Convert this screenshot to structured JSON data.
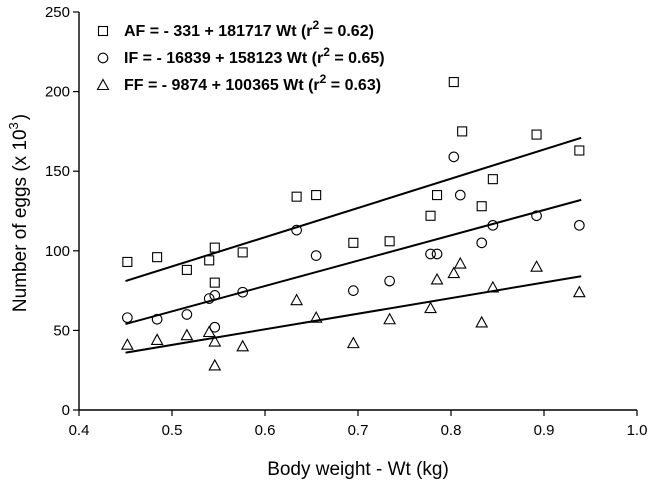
{
  "chart_data": {
    "type": "scatter",
    "xlabel": "Body weight - Wt (kg)",
    "ylabel_main": "Number of eggs (x 10",
    "ylabel_sup": "3",
    "ylabel_close": ")",
    "xlim": [
      0.4,
      1.0
    ],
    "ylim": [
      0,
      250
    ],
    "xticks": [
      0.4,
      0.5,
      0.6,
      0.7,
      0.8,
      0.9,
      1.0
    ],
    "xtick_labels": [
      "0.4",
      "0.5",
      "0.6",
      "0.7",
      "0.8",
      "0.9",
      "1.0"
    ],
    "yticks": [
      0,
      50,
      100,
      150,
      200,
      250
    ],
    "ytick_labels": [
      "0",
      "50",
      "100",
      "150",
      "200",
      "250"
    ],
    "grid": false,
    "legend_position": "top-left",
    "series": [
      {
        "name": "AF",
        "marker": "square",
        "legend_main": "AF = - 331 + 181717 Wt (r",
        "legend_sup": "2",
        "legend_close": " = 0.62)",
        "fit": {
          "x": [
            0.45,
            0.94
          ],
          "y": [
            81,
            171
          ]
        },
        "points": [
          [
            0.452,
            93
          ],
          [
            0.484,
            96
          ],
          [
            0.516,
            88
          ],
          [
            0.54,
            94
          ],
          [
            0.546,
            102
          ],
          [
            0.546,
            80
          ],
          [
            0.576,
            99
          ],
          [
            0.634,
            134
          ],
          [
            0.655,
            135
          ],
          [
            0.695,
            105
          ],
          [
            0.734,
            106
          ],
          [
            0.778,
            122
          ],
          [
            0.785,
            135
          ],
          [
            0.803,
            206
          ],
          [
            0.812,
            175
          ],
          [
            0.833,
            128
          ],
          [
            0.845,
            145
          ],
          [
            0.892,
            173
          ],
          [
            0.938,
            163
          ]
        ]
      },
      {
        "name": "IF",
        "marker": "circle",
        "legend_main": "IF = - 16839 + 158123 Wt (r",
        "legend_sup": "2",
        "legend_close": " = 0.65)",
        "fit": {
          "x": [
            0.45,
            0.94
          ],
          "y": [
            54,
            132
          ]
        },
        "points": [
          [
            0.452,
            58
          ],
          [
            0.484,
            57
          ],
          [
            0.516,
            60
          ],
          [
            0.54,
            70
          ],
          [
            0.546,
            72
          ],
          [
            0.546,
            52
          ],
          [
            0.576,
            74
          ],
          [
            0.634,
            113
          ],
          [
            0.655,
            97
          ],
          [
            0.695,
            75
          ],
          [
            0.734,
            81
          ],
          [
            0.778,
            98
          ],
          [
            0.785,
            98
          ],
          [
            0.803,
            159
          ],
          [
            0.81,
            135
          ],
          [
            0.833,
            105
          ],
          [
            0.845,
            116
          ],
          [
            0.892,
            122
          ],
          [
            0.938,
            116
          ]
        ]
      },
      {
        "name": "FF",
        "marker": "triangle",
        "legend_main": "FF = - 9874 + 100365 Wt (r",
        "legend_sup": "2",
        "legend_close": " = 0.63)",
        "fit": {
          "x": [
            0.45,
            0.94
          ],
          "y": [
            36,
            84
          ]
        },
        "points": [
          [
            0.452,
            41
          ],
          [
            0.484,
            44
          ],
          [
            0.516,
            47
          ],
          [
            0.54,
            49
          ],
          [
            0.546,
            43
          ],
          [
            0.546,
            28
          ],
          [
            0.576,
            40
          ],
          [
            0.634,
            69
          ],
          [
            0.655,
            58
          ],
          [
            0.695,
            42
          ],
          [
            0.734,
            57
          ],
          [
            0.778,
            64
          ],
          [
            0.785,
            82
          ],
          [
            0.803,
            86
          ],
          [
            0.81,
            92
          ],
          [
            0.833,
            55
          ],
          [
            0.845,
            77
          ],
          [
            0.892,
            90
          ],
          [
            0.938,
            74
          ]
        ]
      }
    ]
  }
}
